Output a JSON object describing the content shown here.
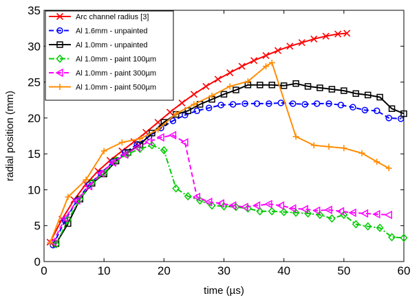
{
  "chart_data": {
    "type": "line",
    "title": "",
    "xlabel": "time (µs)",
    "ylabel": "radial position (mm)",
    "xlim": [
      0,
      60
    ],
    "ylim": [
      0,
      35
    ],
    "xticks": [
      0,
      10,
      20,
      30,
      40,
      50,
      60
    ],
    "yticks": [
      0,
      5,
      10,
      15,
      20,
      25,
      30,
      35
    ],
    "grid": false,
    "legend_position": "top-left",
    "series": [
      {
        "name": "Arc channel radius [3]",
        "color": "#ff0000",
        "line": "solid",
        "marker": "x",
        "x": [
          1,
          3,
          5,
          7,
          9,
          11,
          13,
          15,
          17,
          19,
          21,
          23,
          25,
          27,
          29,
          31,
          33,
          35,
          37,
          39,
          41,
          43,
          45,
          47,
          49,
          50.5
        ],
        "y": [
          2.7,
          5.9,
          8.6,
          10.8,
          12.6,
          14.1,
          15.4,
          16.7,
          18.0,
          19.4,
          20.8,
          22.1,
          23.3,
          24.4,
          25.4,
          26.3,
          27.2,
          28.0,
          28.7,
          29.4,
          30.0,
          30.5,
          31.0,
          31.4,
          31.7,
          31.8
        ]
      },
      {
        "name": "Al 1.6mm - unpainted",
        "color": "#0000ff",
        "line": "dashed",
        "marker": "circle",
        "x": [
          1.5,
          3.5,
          5.5,
          7.5,
          9.5,
          11.5,
          13.5,
          15.5,
          17.5,
          19.5,
          21.5,
          23.5,
          25.5,
          27.5,
          29.5,
          31.5,
          33.5,
          35.5,
          37.5,
          39.5,
          41.5,
          43.5,
          45.5,
          47.5,
          49.5,
          51.5,
          53.5,
          55.5,
          57.5,
          59.5
        ],
        "y": [
          2.3,
          5.7,
          8.5,
          10.7,
          12.3,
          13.9,
          15.2,
          16.3,
          17.4,
          18.6,
          19.6,
          20.4,
          21.0,
          21.4,
          21.8,
          21.9,
          22.0,
          22.0,
          22.0,
          22.1,
          22.0,
          21.9,
          22.0,
          22.0,
          21.8,
          21.5,
          21.1,
          21.0,
          20.0,
          19.9
        ]
      },
      {
        "name": "Al 1.0mm - unpainted",
        "color": "#000000",
        "line": "solid",
        "marker": "square",
        "x": [
          2,
          4,
          6,
          8,
          10,
          12,
          14,
          16,
          18,
          20,
          22,
          24,
          26,
          28,
          30,
          32,
          34,
          36,
          38,
          40,
          42,
          44,
          46,
          48,
          50,
          52,
          54,
          56,
          58,
          60
        ],
        "y": [
          2.5,
          5.3,
          8.7,
          10.9,
          12.2,
          14.0,
          15.2,
          16.3,
          17.9,
          19.4,
          20.5,
          21.0,
          21.9,
          22.6,
          23.3,
          23.9,
          24.6,
          24.6,
          24.6,
          24.5,
          24.8,
          24.4,
          24.2,
          24.0,
          23.8,
          23.4,
          23.2,
          22.9,
          21.3,
          20.6
        ]
      },
      {
        "name": "Al 1.0mm - paint 100µm",
        "color": "#00cc00",
        "line": "dashdot",
        "marker": "diamond",
        "x": [
          2,
          4,
          6,
          8,
          10,
          12,
          14,
          16,
          18,
          20,
          22,
          24,
          26,
          28,
          30,
          32,
          34,
          36,
          38,
          40,
          42,
          44,
          46,
          48,
          50,
          52,
          54,
          56,
          58,
          60
        ],
        "y": [
          2.4,
          5.8,
          8.7,
          11.0,
          12.3,
          14.1,
          15.0,
          15.7,
          16.2,
          15.5,
          10.2,
          9.1,
          8.5,
          7.8,
          7.7,
          7.6,
          7.4,
          7.0,
          7.0,
          6.9,
          6.8,
          6.7,
          6.5,
          6.0,
          6.5,
          5.2,
          4.9,
          4.7,
          3.4,
          3.3
        ]
      },
      {
        "name": "Al 1.0mm - paint 300µm",
        "color": "#ff00ff",
        "line": "dashed",
        "marker": "triangle-left",
        "x": [
          1.5,
          3.5,
          5.5,
          7.5,
          9.5,
          11.5,
          13.5,
          15.5,
          17.5,
          19.5,
          21.5,
          23.5,
          25.5,
          27.5,
          29.5,
          31.5,
          33.5,
          35.5,
          37.5,
          39.5,
          41.5,
          43.5,
          45.5,
          47.5,
          49.5,
          51.5,
          53.5,
          55.5,
          57.5
        ],
        "y": [
          2.7,
          6.0,
          8.5,
          10.5,
          12.3,
          13.8,
          14.9,
          15.9,
          16.7,
          17.3,
          17.6,
          16.6,
          9.0,
          8.3,
          8.1,
          7.8,
          7.6,
          7.8,
          8.0,
          7.8,
          7.4,
          7.3,
          7.1,
          7.2,
          7.0,
          6.8,
          6.7,
          6.6,
          6.5
        ]
      },
      {
        "name": "Al 1.0mm - paint 500µm",
        "color": "#ff8c00",
        "line": "solid",
        "marker": "plus",
        "x": [
          1,
          4,
          7,
          10,
          13,
          16,
          19,
          22,
          25,
          28,
          31,
          34,
          37,
          38,
          42,
          45,
          47.5,
          50,
          53,
          55.5,
          57.5
        ],
        "y": [
          2.6,
          9.0,
          11.4,
          15.4,
          16.6,
          17.1,
          18.4,
          20.6,
          21.9,
          23.1,
          24.4,
          25.1,
          27.2,
          27.7,
          17.4,
          16.2,
          16.0,
          15.8,
          15.1,
          13.9,
          13.0
        ]
      }
    ]
  }
}
